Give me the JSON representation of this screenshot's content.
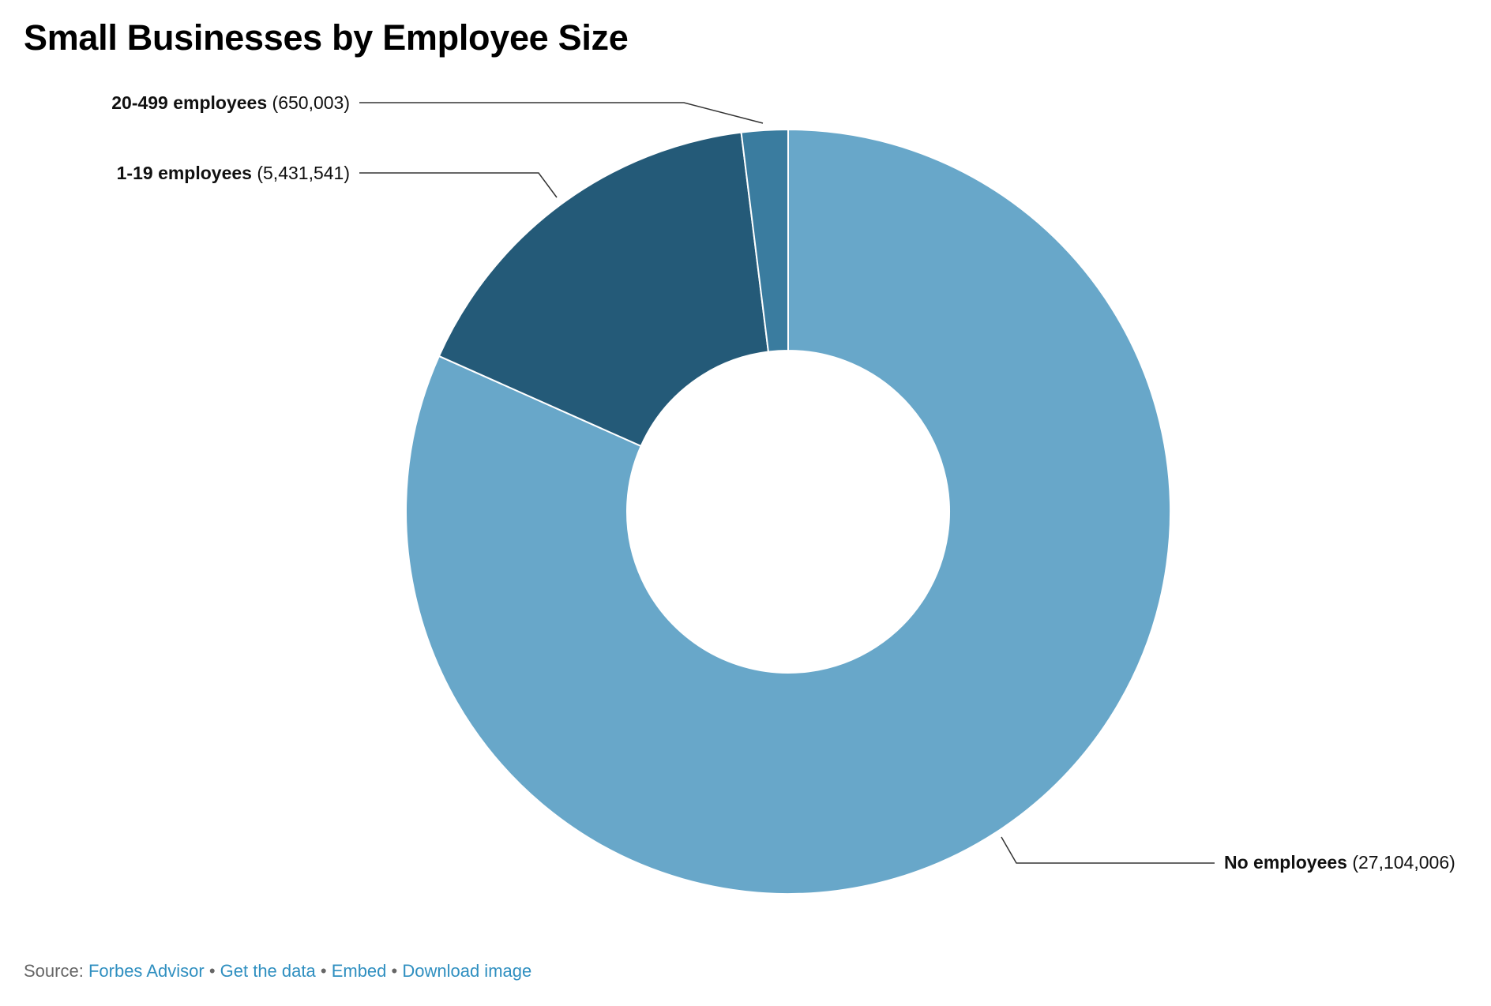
{
  "chart_data": {
    "type": "pie",
    "variant": "donut",
    "title": "Small Businesses by Employee Size",
    "slices": [
      {
        "label": "No employees",
        "value": 27104006,
        "value_text": "(27,104,006)",
        "color": "#68a7c9"
      },
      {
        "label": "1-19 employees",
        "value": 5431541,
        "value_text": "(5,431,541)",
        "color": "#245a78"
      },
      {
        "label": "20-499 employees",
        "value": 650003,
        "value_text": "(650,003)",
        "color": "#3a7c9f"
      }
    ],
    "start_angle": "12 o'clock",
    "direction": "clockwise",
    "legend": "none"
  },
  "footer": {
    "source_label": "Source:",
    "source_link": "Forbes Advisor",
    "separator": "•",
    "get_data": "Get the data",
    "embed": "Embed",
    "download": "Download image"
  },
  "colors": {
    "link": "#2f8fc0",
    "leader_line": "#333333"
  }
}
